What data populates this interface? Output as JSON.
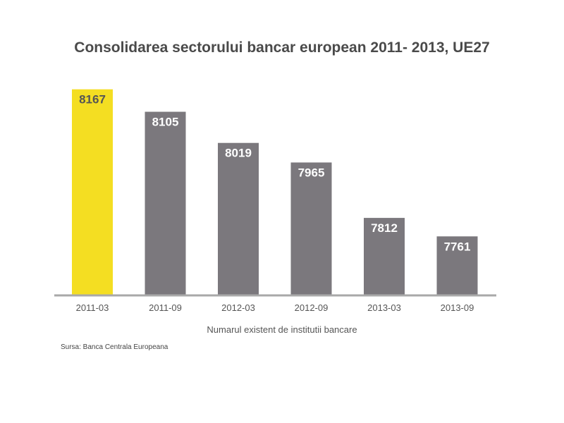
{
  "colors": {
    "highlight": "#f4de22",
    "bar": "#7b787d",
    "axis": "#a9a9a9",
    "title": "#4a4a4a",
    "label_dark": "#555555",
    "label_light": "#ffffff",
    "tick": "#555555"
  },
  "chart_data": {
    "type": "bar",
    "title": "Consolidarea sectorului bancar european 2011- 2013, UE27",
    "xlabel": "Numarul existent de institutii bancare",
    "ylabel": "",
    "categories": [
      "2011-03",
      "2011-09",
      "2012-03",
      "2012-09",
      "2013-03",
      "2013-09"
    ],
    "values": [
      8167,
      8105,
      8019,
      7965,
      7812,
      7761
    ],
    "highlight_index": 0,
    "ylim": [
      7600,
      8180
    ],
    "grid": false,
    "legend": "none"
  },
  "source": "Sursa: Banca Centrala Europeana"
}
